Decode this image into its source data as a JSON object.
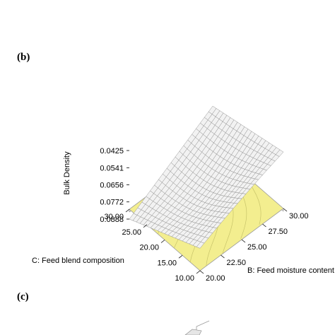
{
  "panels": [
    {
      "label": "(b)"
    },
    {
      "label": "(c)"
    }
  ],
  "colors": {
    "floor": "#f3ee8f",
    "floor_contour": "#c8c46a",
    "surface_fill": "#f2f2f2",
    "surface_mesh": "#8a8a8a",
    "frame": "#9a9a9a"
  },
  "chart_data": {
    "type": "surface",
    "title": "",
    "zlabel": "Bulk Density",
    "xlabel": "B: Feed moisture content",
    "ylabel": "C: Feed blend composition",
    "x_ticks": [
      "20.00",
      "22.50",
      "25.00",
      "27.50",
      "30.00"
    ],
    "y_ticks": [
      "10.00",
      "15.00",
      "20.00",
      "25.00",
      "30.00"
    ],
    "z_ticks": [
      "0.0425",
      "0.0541",
      "0.0656",
      "0.0772",
      "0.0888"
    ],
    "xlim": [
      20,
      30
    ],
    "ylim": [
      10,
      30
    ],
    "zlim": [
      0.0425,
      0.0888
    ],
    "grid_size": 21,
    "surface_model": {
      "description": "bulk density surface over B (x) and C (y)",
      "corner_values": {
        "B20_C30": 0.0888,
        "B30_C30": 0.0545,
        "B20_C10": 0.067,
        "B30_C10": 0.044
      }
    }
  }
}
